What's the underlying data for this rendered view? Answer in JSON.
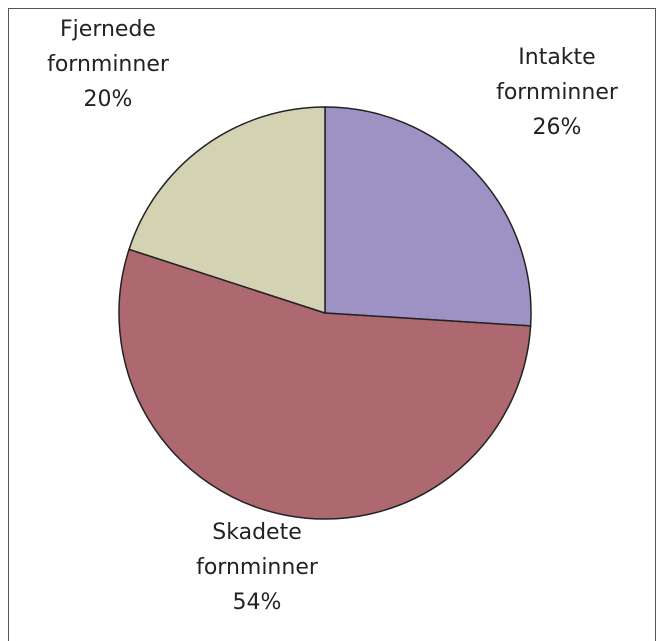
{
  "chart_data": {
    "type": "pie",
    "categories": [
      "Intakte fornminner",
      "Skadete fornminner",
      "Fjernede fornminner"
    ],
    "values": [
      26,
      54,
      20
    ],
    "value_labels": [
      "26%",
      "54%",
      "20%"
    ],
    "colors": [
      "#9e92c4",
      "#ad6870",
      "#d3d3b4"
    ]
  }
}
